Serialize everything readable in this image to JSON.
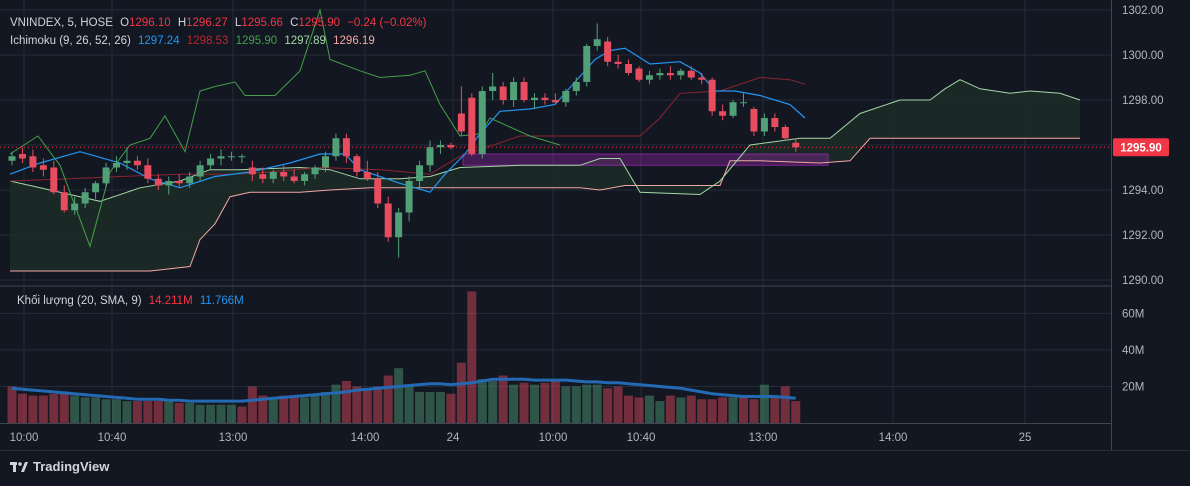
{
  "legend": {
    "symbol": "VNINDEX, 5, HOSE",
    "o_label": "O",
    "o_value": "1296.10",
    "h_label": "H",
    "h_value": "1296.27",
    "l_label": "L",
    "l_value": "1295.66",
    "c_label": "C",
    "c_value": "1295.90",
    "change": "−0.24 (−0.02%)",
    "ichimoku_label": "Ichimoku (9, 26, 52, 26)",
    "ichimoku_values": [
      "1297.24",
      "1298.53",
      "1295.90",
      "1297.89",
      "1296.19"
    ],
    "volume_label": "Khối lượng (20, SMA, 9)",
    "volume_value": "14.211M",
    "volume_sma_value": "11.766M"
  },
  "colors": {
    "background": "#131722",
    "grid": "#262b3a",
    "up": "#52a077",
    "down": "#e84c5f",
    "tenkan": "#2196f3",
    "kijun": "#8b2430",
    "chikou": "#43a047",
    "span_a": "#a5d6a7",
    "span_b": "#f3a7a5",
    "cloud": "#1d2b27",
    "highlight": "#9c27b0",
    "vol_sma": "#2469b3",
    "last_price_bg": "#f23645"
  },
  "price_axis": {
    "ticks": [
      "1290.00",
      "1292.00",
      "1294.00",
      "1296.00",
      "1298.00",
      "1300.00",
      "1302.00"
    ],
    "last_price": "1295.90"
  },
  "volume_axis": {
    "ticks": [
      "20M",
      "40M",
      "60M"
    ]
  },
  "time_axis": {
    "ticks": [
      "10:00",
      "10:40",
      "13:00",
      "14:00",
      "24",
      "10:00",
      "10:40",
      "13:00",
      "14:00",
      "25"
    ]
  },
  "branding": {
    "name": "TradingView"
  },
  "chart_data": {
    "type": "candlestick",
    "y_range": [
      1289.9,
      1302.1
    ],
    "volume_range": [
      0,
      75
    ],
    "candles": [
      [
        1295.3,
        1295.7,
        1295.1,
        1295.5
      ],
      [
        1295.6,
        1295.9,
        1295.2,
        1295.4
      ],
      [
        1295.5,
        1295.8,
        1294.8,
        1295.0
      ],
      [
        1295.1,
        1295.4,
        1294.6,
        1294.9
      ],
      [
        1295.0,
        1295.3,
        1293.8,
        1293.9
      ],
      [
        1293.9,
        1294.2,
        1293.0,
        1293.1
      ],
      [
        1293.1,
        1293.7,
        1292.9,
        1293.4
      ],
      [
        1293.4,
        1294.1,
        1293.2,
        1293.9
      ],
      [
        1293.9,
        1294.4,
        1293.6,
        1294.3
      ],
      [
        1294.3,
        1295.2,
        1294.1,
        1295.0
      ],
      [
        1295.0,
        1295.5,
        1294.8,
        1295.2
      ],
      [
        1295.2,
        1295.9,
        1294.9,
        1295.3
      ],
      [
        1295.3,
        1295.5,
        1294.9,
        1295.1
      ],
      [
        1295.1,
        1295.4,
        1294.3,
        1294.5
      ],
      [
        1294.5,
        1294.7,
        1294.0,
        1294.2
      ],
      [
        1294.2,
        1294.6,
        1293.8,
        1294.4
      ],
      [
        1294.4,
        1294.7,
        1294.1,
        1294.3
      ],
      [
        1294.3,
        1294.8,
        1294.1,
        1294.6
      ],
      [
        1294.6,
        1295.3,
        1294.4,
        1295.1
      ],
      [
        1295.1,
        1295.6,
        1294.9,
        1295.4
      ],
      [
        1295.4,
        1295.8,
        1295.1,
        1295.5
      ],
      [
        1295.5,
        1295.7,
        1295.3,
        1295.5
      ],
      [
        1295.5,
        1295.6,
        1295.2,
        1295.5
      ],
      [
        1295.0,
        1295.3,
        1294.4,
        1294.7
      ],
      [
        1294.7,
        1295.0,
        1294.3,
        1294.5
      ],
      [
        1294.5,
        1294.9,
        1294.3,
        1294.8
      ],
      [
        1294.8,
        1295.1,
        1294.4,
        1294.6
      ],
      [
        1294.6,
        1294.9,
        1294.3,
        1294.4
      ],
      [
        1294.4,
        1294.8,
        1294.2,
        1294.7
      ],
      [
        1294.7,
        1295.1,
        1294.5,
        1295.0
      ],
      [
        1295.0,
        1295.7,
        1294.8,
        1295.5
      ],
      [
        1295.5,
        1296.5,
        1295.3,
        1296.3
      ],
      [
        1296.3,
        1296.5,
        1295.2,
        1295.5
      ],
      [
        1295.5,
        1295.6,
        1294.6,
        1294.8
      ],
      [
        1294.8,
        1295.3,
        1294.4,
        1294.5
      ],
      [
        1294.5,
        1294.8,
        1293.2,
        1293.4
      ],
      [
        1293.4,
        1293.7,
        1291.7,
        1291.9
      ],
      [
        1291.9,
        1293.2,
        1291.0,
        1293.0
      ],
      [
        1293.0,
        1294.6,
        1292.6,
        1294.4
      ],
      [
        1294.4,
        1295.3,
        1294.1,
        1295.1
      ],
      [
        1295.1,
        1296.2,
        1294.8,
        1295.9
      ],
      [
        1295.9,
        1296.2,
        1295.6,
        1296.0
      ],
      [
        1296.0,
        1296.1,
        1295.8,
        1295.9
      ],
      [
        1297.4,
        1298.6,
        1296.4,
        1296.6
      ],
      [
        1298.1,
        1298.3,
        1295.5,
        1295.6
      ],
      [
        1295.6,
        1298.6,
        1295.4,
        1298.4
      ],
      [
        1298.4,
        1299.2,
        1298.0,
        1298.6
      ],
      [
        1298.6,
        1298.8,
        1297.8,
        1298.0
      ],
      [
        1298.0,
        1299.0,
        1297.7,
        1298.8
      ],
      [
        1298.8,
        1299.0,
        1297.9,
        1298.0
      ],
      [
        1298.0,
        1298.3,
        1297.6,
        1298.1
      ],
      [
        1298.1,
        1298.3,
        1297.8,
        1298.0
      ],
      [
        1298.0,
        1298.3,
        1297.8,
        1297.9
      ],
      [
        1297.9,
        1298.5,
        1297.7,
        1298.4
      ],
      [
        1298.4,
        1299.0,
        1298.2,
        1298.8
      ],
      [
        1298.8,
        1300.5,
        1298.6,
        1300.4
      ],
      [
        1300.4,
        1301.4,
        1300.2,
        1300.7
      ],
      [
        1300.6,
        1300.8,
        1299.5,
        1299.7
      ],
      [
        1299.7,
        1300.0,
        1299.4,
        1299.6
      ],
      [
        1299.6,
        1299.8,
        1299.1,
        1299.2
      ],
      [
        1299.4,
        1299.5,
        1298.8,
        1298.9
      ],
      [
        1298.9,
        1299.3,
        1298.7,
        1299.1
      ],
      [
        1299.1,
        1299.4,
        1298.9,
        1299.2
      ],
      [
        1299.2,
        1299.5,
        1298.9,
        1299.1
      ],
      [
        1299.1,
        1299.4,
        1298.9,
        1299.3
      ],
      [
        1299.3,
        1299.5,
        1298.9,
        1299.0
      ],
      [
        1299.0,
        1299.2,
        1298.7,
        1298.9
      ],
      [
        1298.9,
        1299.0,
        1297.3,
        1297.5
      ],
      [
        1297.5,
        1297.8,
        1297.1,
        1297.3
      ],
      [
        1297.3,
        1298.0,
        1297.2,
        1297.9
      ],
      [
        1297.9,
        1298.3,
        1297.7,
        1297.9
      ],
      [
        1297.6,
        1297.7,
        1296.4,
        1296.6
      ],
      [
        1296.6,
        1297.4,
        1296.4,
        1297.2
      ],
      [
        1297.2,
        1297.4,
        1296.6,
        1296.8
      ],
      [
        1296.8,
        1296.9,
        1296.2,
        1296.3
      ],
      [
        1296.1,
        1296.3,
        1295.7,
        1295.9
      ]
    ],
    "volumes": [
      20,
      16,
      15,
      15,
      16,
      17,
      15,
      14,
      14,
      13,
      13,
      12,
      12,
      12,
      12,
      12,
      11,
      11,
      10,
      10,
      10,
      10,
      9,
      20,
      15,
      14,
      15,
      14,
      14,
      15,
      17,
      21,
      23,
      20,
      18,
      20,
      26,
      30,
      20,
      17,
      17,
      17,
      16,
      33,
      72,
      24,
      23,
      26,
      21,
      22,
      21,
      22,
      23,
      20,
      20,
      21,
      21,
      19,
      20,
      15,
      14,
      15,
      12,
      15,
      14,
      15,
      13,
      13,
      14,
      14,
      15,
      13,
      21,
      15,
      20,
      12
    ],
    "volume_up": [
      false,
      false,
      false,
      false,
      false,
      false,
      true,
      true,
      true,
      true,
      true,
      true,
      false,
      false,
      false,
      true,
      false,
      true,
      true,
      true,
      true,
      true,
      false,
      false,
      false,
      true,
      false,
      false,
      true,
      true,
      true,
      true,
      false,
      false,
      false,
      false,
      false,
      true,
      true,
      true,
      true,
      true,
      false,
      false,
      false,
      true,
      true,
      false,
      true,
      false,
      true,
      false,
      false,
      true,
      true,
      true,
      true,
      false,
      false,
      false,
      false,
      true,
      true,
      false,
      true,
      false,
      false,
      false,
      false,
      true,
      false,
      false,
      true,
      false,
      false,
      false
    ],
    "volume_sma": [
      19,
      18.5,
      18,
      17.5,
      17,
      16.5,
      16,
      15.5,
      15,
      14.5,
      14,
      13.5,
      13,
      13,
      13,
      12.5,
      12.5,
      12,
      12,
      12,
      12,
      12,
      12,
      12.5,
      13,
      13.5,
      14,
      14.5,
      15,
      15.5,
      16,
      16.5,
      17,
      18,
      18.5,
      19,
      19.5,
      20,
      20.5,
      21,
      21.5,
      21.5,
      21,
      21.5,
      22,
      23,
      24,
      24,
      24,
      24,
      23.5,
      23.5,
      23.5,
      23.5,
      23,
      22.5,
      22.5,
      22,
      22,
      21.5,
      21,
      20.5,
      20,
      19.5,
      19,
      18,
      17,
      16,
      15.5,
      15,
      14.5,
      14.5,
      14.5,
      14.5,
      14,
      13.5
    ],
    "tenkan": [
      [
        10,
        1294.7
      ],
      [
        40,
        1295.2
      ],
      [
        80,
        1295.7
      ],
      [
        120,
        1295.2
      ],
      [
        150,
        1294.5
      ],
      [
        180,
        1294.1
      ],
      [
        215,
        1294.6
      ],
      [
        250,
        1294.8
      ],
      [
        290,
        1295.2
      ],
      [
        320,
        1295.6
      ],
      [
        345,
        1295.6
      ],
      [
        360,
        1294.9
      ],
      [
        400,
        1294.3
      ],
      [
        430,
        1293.9
      ],
      [
        445,
        1294.7
      ],
      [
        465,
        1295.6
      ],
      [
        480,
        1296.5
      ],
      [
        500,
        1297.5
      ],
      [
        530,
        1297.6
      ],
      [
        555,
        1297.8
      ],
      [
        575,
        1298.8
      ],
      [
        595,
        1299.8
      ],
      [
        610,
        1300.2
      ],
      [
        625,
        1300.3
      ],
      [
        650,
        1299.6
      ],
      [
        680,
        1299.7
      ],
      [
        700,
        1299.2
      ],
      [
        715,
        1298.4
      ],
      [
        735,
        1298.4
      ],
      [
        760,
        1298.2
      ],
      [
        790,
        1297.8
      ],
      [
        805,
        1297.2
      ]
    ],
    "kijun": [
      [
        10,
        1294.4
      ],
      [
        70,
        1294.5
      ],
      [
        120,
        1294.6
      ],
      [
        180,
        1294.7
      ],
      [
        230,
        1294.7
      ],
      [
        270,
        1294.8
      ],
      [
        320,
        1295.0
      ],
      [
        380,
        1294.9
      ],
      [
        430,
        1294.7
      ],
      [
        460,
        1295.5
      ],
      [
        520,
        1296.4
      ],
      [
        580,
        1296.4
      ],
      [
        640,
        1296.4
      ],
      [
        660,
        1297.2
      ],
      [
        680,
        1298.3
      ],
      [
        720,
        1298.4
      ],
      [
        760,
        1299.0
      ],
      [
        790,
        1298.9
      ],
      [
        805,
        1298.7
      ]
    ],
    "chikou": [
      [
        10,
        1295.6
      ],
      [
        38,
        1296.4
      ],
      [
        60,
        1295.1
      ],
      [
        90,
        1291.5
      ],
      [
        110,
        1294.8
      ],
      [
        130,
        1296.0
      ],
      [
        150,
        1296.3
      ],
      [
        165,
        1297.3
      ],
      [
        185,
        1295.7
      ],
      [
        200,
        1298.4
      ],
      [
        215,
        1298.6
      ],
      [
        235,
        1298.8
      ],
      [
        245,
        1298.2
      ],
      [
        275,
        1298.2
      ],
      [
        300,
        1299.3
      ],
      [
        320,
        1302.0
      ],
      [
        330,
        1299.8
      ],
      [
        360,
        1299.3
      ],
      [
        380,
        1299.0
      ],
      [
        410,
        1299.1
      ],
      [
        425,
        1299.3
      ],
      [
        440,
        1297.8
      ],
      [
        460,
        1296.4
      ],
      [
        480,
        1296.5
      ],
      [
        490,
        1297.2
      ],
      [
        510,
        1296.8
      ],
      [
        530,
        1296.4
      ],
      [
        560,
        1296.0
      ]
    ],
    "span_a": [
      [
        10,
        1294.4
      ],
      [
        60,
        1293.9
      ],
      [
        100,
        1293.5
      ],
      [
        140,
        1294.1
      ],
      [
        180,
        1294.4
      ],
      [
        210,
        1294.9
      ],
      [
        240,
        1294.9
      ],
      [
        300,
        1295.0
      ],
      [
        330,
        1294.9
      ],
      [
        360,
        1294.5
      ],
      [
        400,
        1294.5
      ],
      [
        430,
        1294.6
      ],
      [
        460,
        1295.0
      ],
      [
        520,
        1295.1
      ],
      [
        580,
        1295.1
      ],
      [
        600,
        1295.4
      ],
      [
        620,
        1295.4
      ],
      [
        640,
        1293.9
      ],
      [
        700,
        1293.8
      ],
      [
        720,
        1294.4
      ],
      [
        750,
        1296.0
      ],
      [
        800,
        1296.3
      ],
      [
        830,
        1296.3
      ],
      [
        860,
        1297.4
      ],
      [
        900,
        1298.0
      ],
      [
        930,
        1298.0
      ],
      [
        945,
        1298.5
      ],
      [
        960,
        1298.9
      ],
      [
        980,
        1298.5
      ],
      [
        1010,
        1298.3
      ],
      [
        1030,
        1298.4
      ],
      [
        1060,
        1298.3
      ],
      [
        1080,
        1298.0
      ]
    ],
    "span_b": [
      [
        10,
        1290.4
      ],
      [
        150,
        1290.4
      ],
      [
        190,
        1290.6
      ],
      [
        200,
        1291.8
      ],
      [
        215,
        1292.5
      ],
      [
        230,
        1293.7
      ],
      [
        250,
        1293.9
      ],
      [
        300,
        1293.9
      ],
      [
        330,
        1294.0
      ],
      [
        370,
        1294.1
      ],
      [
        430,
        1294.1
      ],
      [
        460,
        1294.1
      ],
      [
        520,
        1294.1
      ],
      [
        580,
        1294.1
      ],
      [
        600,
        1294.0
      ],
      [
        625,
        1294.2
      ],
      [
        640,
        1294.2
      ],
      [
        720,
        1294.2
      ],
      [
        730,
        1295.3
      ],
      [
        760,
        1295.3
      ],
      [
        820,
        1295.2
      ],
      [
        850,
        1295.3
      ],
      [
        870,
        1296.3
      ],
      [
        1080,
        1296.3
      ]
    ],
    "highlight_zone": {
      "x_from": 463,
      "x_to": 828,
      "y_from": 1295.1,
      "y_to": 1295.6
    }
  }
}
